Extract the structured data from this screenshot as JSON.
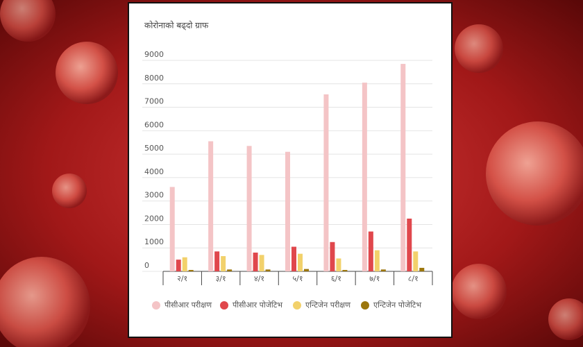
{
  "chart_data": {
    "type": "bar",
    "title": "कोरोनाको बढ्दो ग्राफ",
    "categories": [
      "२/१",
      "३/१",
      "४/१",
      "५/१",
      "६/१",
      "७/१",
      "८/१"
    ],
    "series": [
      {
        "name": "पीसीआर परीक्षण",
        "color": "#f4c4c6",
        "values": [
          3600,
          5550,
          5350,
          5100,
          7550,
          8050,
          8850
        ]
      },
      {
        "name": "पीसीआर पोजेटिभ",
        "color": "#e0474c",
        "values": [
          500,
          850,
          800,
          1050,
          1250,
          1700,
          2250
        ]
      },
      {
        "name": "एन्टिजेन परीक्षण",
        "color": "#f2d16b",
        "values": [
          600,
          650,
          700,
          750,
          550,
          900,
          850
        ]
      },
      {
        "name": "एन्टिजेन पोजेटिभ",
        "color": "#9c760c",
        "values": [
          60,
          80,
          80,
          100,
          60,
          80,
          150
        ]
      }
    ],
    "ylim": [
      0,
      9000
    ],
    "yticks": [
      0,
      1000,
      2000,
      3000,
      4000,
      5000,
      6000,
      7000,
      8000,
      9000
    ],
    "grid": true,
    "legend": "bottom"
  }
}
